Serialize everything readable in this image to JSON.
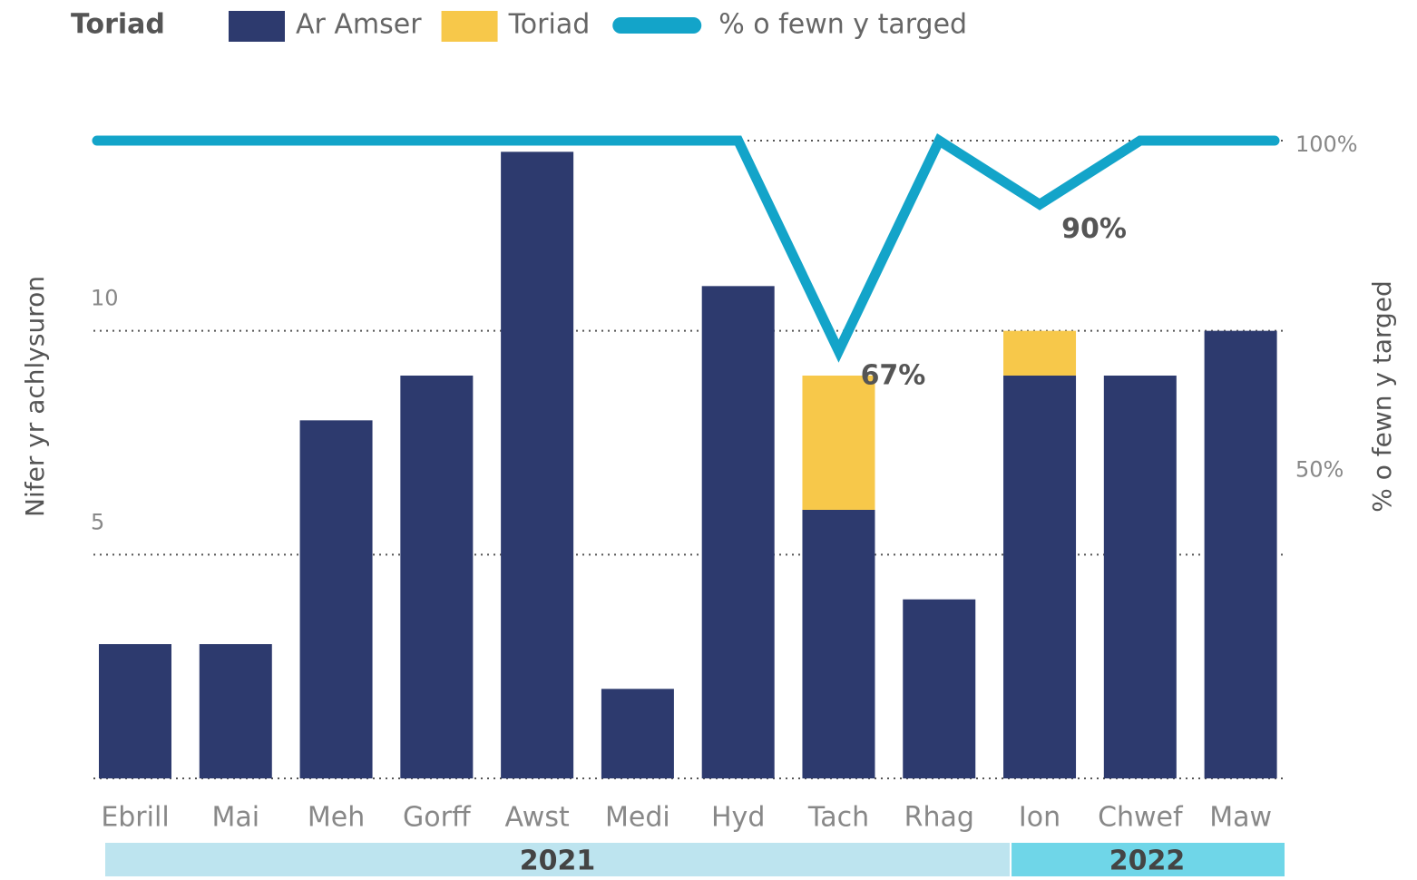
{
  "chart_data": {
    "type": "bar",
    "legend_title": "Toriad",
    "y_label": "Nifer yr achlysuron",
    "y2_label": "% o fewn y targed",
    "categories": [
      "Ebrill",
      "Mai",
      "Meh",
      "Gorff",
      "Awst",
      "Medi",
      "Hyd",
      "Tach",
      "Rhag",
      "Ion",
      "Chwef",
      "Maw"
    ],
    "series": [
      {
        "name": "Ar Amser",
        "color": "#2d3a6e",
        "values": [
          3,
          3,
          8,
          9,
          14,
          2,
          11,
          6,
          4,
          9,
          9,
          10
        ]
      },
      {
        "name": "Toriad",
        "color": "#f7c84a",
        "values": [
          0,
          0,
          0,
          0,
          0,
          0,
          0,
          3,
          0,
          1,
          0,
          0
        ]
      },
      {
        "name": "% o fewn y targed",
        "color": "#13a4c9",
        "axis": "y2",
        "type": "line",
        "values": [
          100,
          100,
          100,
          100,
          100,
          100,
          100,
          67,
          100,
          90,
          100,
          100
        ],
        "value_labels": [
          null,
          null,
          null,
          null,
          null,
          null,
          null,
          "67%",
          null,
          "90%",
          null,
          null
        ]
      }
    ],
    "groups": [
      {
        "label": "2021",
        "span": 9,
        "color": "#bde4ef"
      },
      {
        "label": "2022",
        "span": 3,
        "color": "#6fd6e8"
      }
    ],
    "ylim": [
      0,
      14.25
    ],
    "yticks": [
      0,
      5,
      10
    ],
    "y2lim": [
      0,
      100
    ],
    "y2ticks": [
      {
        "value": 50,
        "label": "50%"
      },
      {
        "value": 100,
        "label": "100%"
      }
    ],
    "grid": true
  }
}
